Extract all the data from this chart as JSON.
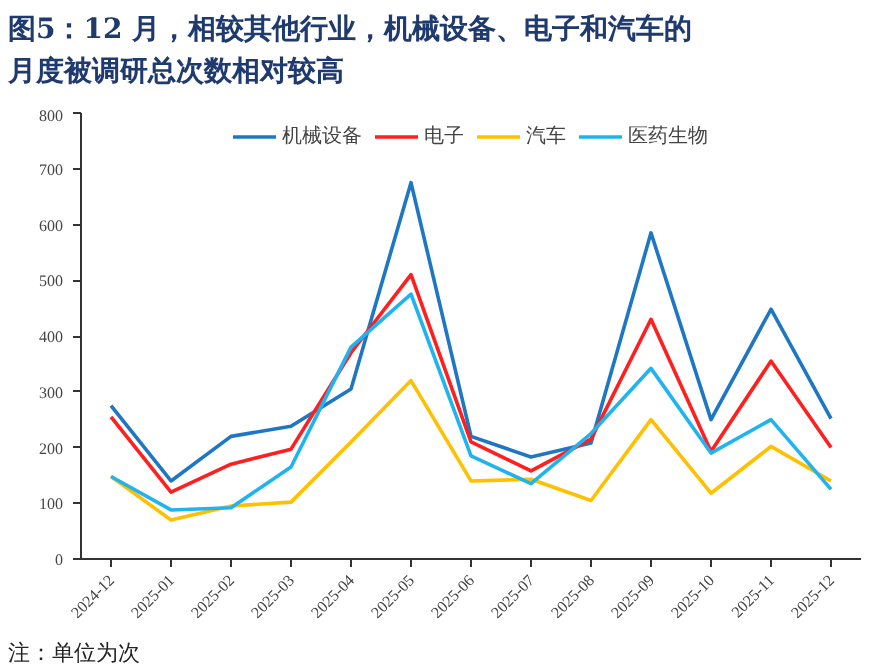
{
  "chart_data": {
    "type": "line",
    "title": "图5：12 月，相较其他行业，机械设备、电子和汽车的月度被调研总次数相对较高",
    "categories": [
      "2024-12",
      "2025-01",
      "2025-02",
      "2025-03",
      "2025-04",
      "2025-05",
      "2025-06",
      "2025-07",
      "2025-08",
      "2025-09",
      "2025-10",
      "2025-11",
      "2025-12"
    ],
    "series": [
      {
        "name": "机械设备",
        "color": "#1f77c4",
        "values": [
          275,
          140,
          220,
          238,
          305,
          675,
          220,
          183,
          208,
          585,
          250,
          448,
          252
        ]
      },
      {
        "name": "电子",
        "color": "#ff1f1f",
        "values": [
          255,
          120,
          170,
          197,
          370,
          510,
          210,
          158,
          215,
          430,
          193,
          355,
          200
        ]
      },
      {
        "name": "汽车",
        "color": "#ffc000",
        "values": [
          148,
          70,
          95,
          102,
          210,
          320,
          140,
          143,
          105,
          250,
          118,
          202,
          140
        ]
      },
      {
        "name": "医药生物",
        "color": "#1fb4f0",
        "values": [
          148,
          88,
          92,
          165,
          380,
          475,
          185,
          135,
          225,
          342,
          190,
          250,
          125
        ]
      }
    ],
    "ylim": [
      0,
      800
    ],
    "yticks": [
      0,
      100,
      200,
      300,
      400,
      500,
      600,
      700,
      800
    ],
    "grid": false,
    "legend": "top",
    "annotations": [
      "注：单位为次"
    ]
  }
}
